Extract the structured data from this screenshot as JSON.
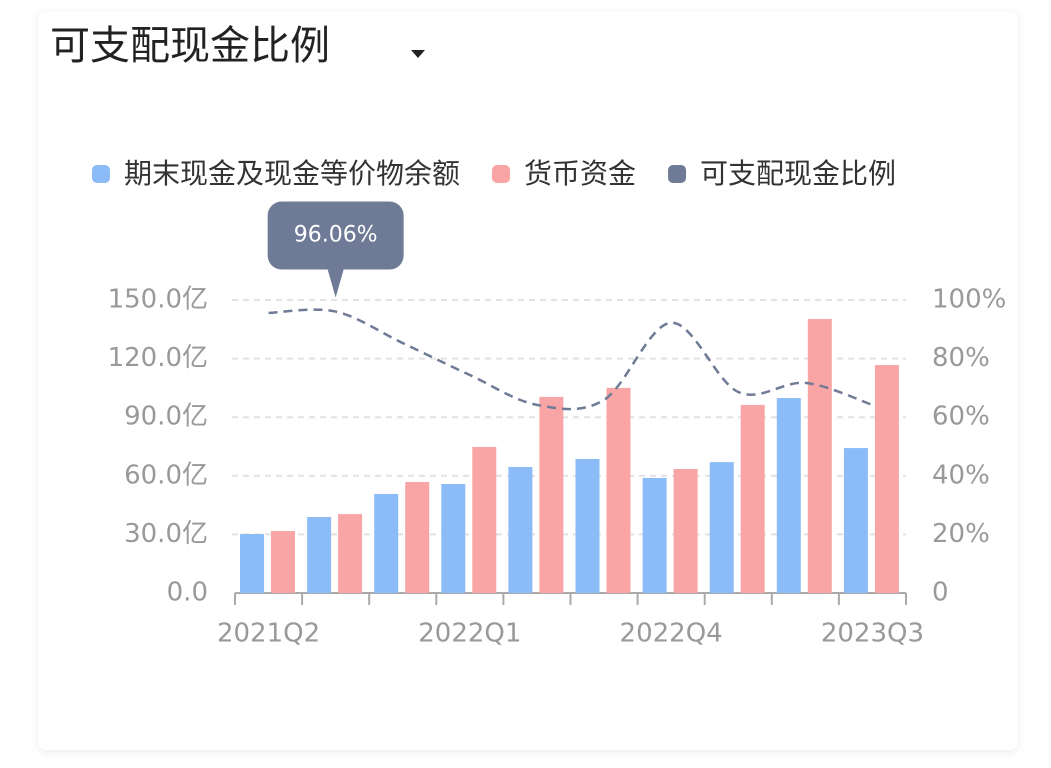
{
  "chart_data": {
    "type": "bar_line",
    "title": "可支配现金比例",
    "categories": [
      "2021Q2",
      null,
      null,
      "2022Q1",
      null,
      null,
      "2022Q4",
      null,
      null,
      "2023Q3"
    ],
    "series": [
      {
        "name": "期末现金及现金等价物余额",
        "color": "#8bbcf8",
        "values": [
          30.2,
          38.9,
          50.7,
          55.8,
          64.5,
          68.6,
          58.9,
          67,
          99.8,
          74.2
        ]
      },
      {
        "name": "货币资金",
        "color": "#f9a5a5",
        "values": [
          31.7,
          40.4,
          56.8,
          74.8,
          100.4,
          105,
          63.5,
          96.3,
          140.3,
          116.7
        ]
      },
      {
        "name": "可支配现金比例",
        "color": "#6f7b96",
        "axis": "y2",
        "values": [
          95.6,
          96.06,
          85.3,
          74.4,
          64.2,
          65.9,
          92.2,
          68.6,
          71.7,
          64.2
        ],
        "value_labels": [
          null,
          "96.06%",
          null,
          null,
          null,
          null,
          null,
          null,
          null,
          null
        ]
      }
    ],
    "ylim": [
      0,
      150
    ],
    "yticks": [
      {
        "value": 0,
        "label": "0.0"
      },
      {
        "value": 30,
        "label": "30.0亿"
      },
      {
        "value": 60,
        "label": "60.0亿"
      },
      {
        "value": 90,
        "label": "90.0亿"
      },
      {
        "value": 120,
        "label": "120.0亿"
      },
      {
        "value": 150,
        "label": "150.0亿"
      }
    ],
    "y2lim": [
      0,
      100
    ],
    "y2ticks": [
      0,
      {
        "value": 20,
        "label": "20%"
      },
      {
        "value": 40,
        "label": "40%"
      },
      {
        "value": 60,
        "label": "60%"
      },
      {
        "value": 80,
        "label": "80%"
      },
      {
        "value": 100,
        "label": "100%"
      }
    ],
    "grid": true,
    "legend": "top"
  }
}
